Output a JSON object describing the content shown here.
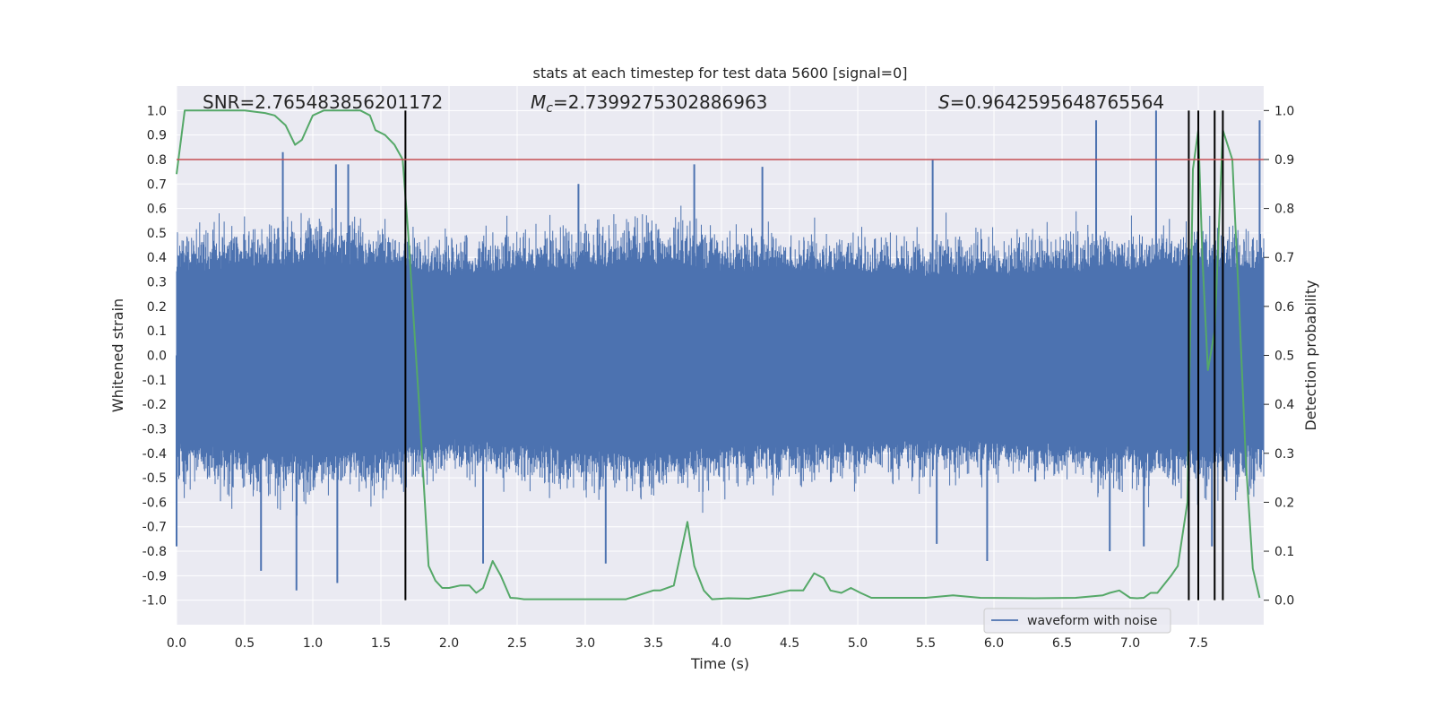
{
  "chart_data": {
    "type": "line",
    "title": "stats at each timestep for test data 5600 [signal=0]",
    "xlabel": "Time (s)",
    "ylabel_left": "Whitened strain",
    "ylabel_right": "Detection probability",
    "xlim": [
      0.0,
      7.98
    ],
    "ylim_left": [
      -1.1,
      1.1
    ],
    "ylim_right": [
      -0.05,
      1.05
    ],
    "x_ticks": [
      "0.0",
      "0.5",
      "1.0",
      "1.5",
      "2.0",
      "2.5",
      "3.0",
      "3.5",
      "4.0",
      "4.5",
      "5.0",
      "5.5",
      "6.0",
      "6.5",
      "7.0",
      "7.5"
    ],
    "y_ticks_left": [
      "1.0",
      "0.9",
      "0.8",
      "0.7",
      "0.6",
      "0.5",
      "0.4",
      "0.3",
      "0.2",
      "0.1",
      "0.0",
      "-0.1",
      "-0.2",
      "-0.3",
      "-0.4",
      "-0.5",
      "-0.6",
      "-0.7",
      "-0.8",
      "-0.9",
      "-1.0"
    ],
    "y_ticks_right": [
      "1.0",
      "0.9",
      "0.8",
      "0.7",
      "0.6",
      "0.5",
      "0.4",
      "0.3",
      "0.2",
      "0.1",
      "0.0"
    ],
    "grid": true,
    "legend_placement": "bottom-right",
    "annotations": {
      "snr": "SNR=2.765483856201172",
      "mc_symbol": "M",
      "mc_sub": "c",
      "mc_value": "=2.7399275302886963",
      "s_symbol": "S",
      "s_value": "=0.9642595648765564"
    },
    "threshold": {
      "value": 0.9,
      "axis": "right",
      "color": "#c44e52"
    },
    "vertical_lines": [
      1.68,
      7.43,
      7.5,
      7.62,
      7.68
    ],
    "series": [
      {
        "name": "waveform with noise",
        "axis": "left",
        "color": "#4c72b0",
        "envelope": {
          "t": [
            0.0,
            0.5,
            1.0,
            1.5,
            2.0,
            2.5,
            3.0,
            3.5,
            4.0,
            4.5,
            5.0,
            5.5,
            6.0,
            6.5,
            7.0,
            7.5,
            7.98
          ],
          "spread": [
            0.45,
            0.48,
            0.5,
            0.48,
            0.42,
            0.45,
            0.47,
            0.5,
            0.46,
            0.45,
            0.44,
            0.43,
            0.43,
            0.45,
            0.46,
            0.48,
            0.45
          ]
        },
        "spikes": [
          {
            "t": 0.78,
            "v": 0.83
          },
          {
            "t": 1.17,
            "v": 0.78
          },
          {
            "t": 1.26,
            "v": 0.78
          },
          {
            "t": 2.95,
            "v": 0.7
          },
          {
            "t": 3.8,
            "v": 0.78
          },
          {
            "t": 4.3,
            "v": 0.77
          },
          {
            "t": 5.55,
            "v": 0.8
          },
          {
            "t": 6.75,
            "v": 0.96
          },
          {
            "t": 7.19,
            "v": 1.0
          },
          {
            "t": 7.95,
            "v": 0.96
          },
          {
            "t": 0.88,
            "v": -0.96
          },
          {
            "t": 1.18,
            "v": -0.93
          },
          {
            "t": 0.62,
            "v": -0.88
          },
          {
            "t": 2.25,
            "v": -0.85
          },
          {
            "t": 3.15,
            "v": -0.85
          },
          {
            "t": 5.95,
            "v": -0.84
          },
          {
            "t": 5.58,
            "v": -0.77
          },
          {
            "t": 7.1,
            "v": -0.78
          },
          {
            "t": 6.85,
            "v": -0.8
          },
          {
            "t": 7.6,
            "v": -0.78
          },
          {
            "t": 0.0,
            "v": -0.78
          }
        ]
      },
      {
        "name": "Detection probability",
        "axis": "right",
        "color": "#55a868",
        "x": [
          0.0,
          0.06,
          0.15,
          0.3,
          0.5,
          0.65,
          0.72,
          0.8,
          0.87,
          0.92,
          1.0,
          1.08,
          1.15,
          1.25,
          1.35,
          1.42,
          1.46,
          1.53,
          1.6,
          1.66,
          1.7,
          1.78,
          1.85,
          1.9,
          1.95,
          2.0,
          2.08,
          2.15,
          2.2,
          2.25,
          2.32,
          2.38,
          2.45,
          2.5,
          2.55,
          2.7,
          3.0,
          3.3,
          3.5,
          3.55,
          3.65,
          3.75,
          3.8,
          3.87,
          3.93,
          4.05,
          4.2,
          4.35,
          4.5,
          4.6,
          4.68,
          4.75,
          4.8,
          4.88,
          4.95,
          5.02,
          5.1,
          5.5,
          5.7,
          5.9,
          6.3,
          6.6,
          6.8,
          6.85,
          6.92,
          7.0,
          7.05,
          7.1,
          7.15,
          7.2,
          7.3,
          7.35,
          7.42,
          7.46,
          7.5,
          7.53,
          7.57,
          7.62,
          7.68,
          7.75,
          7.8,
          7.85,
          7.9,
          7.95
        ],
        "y": [
          0.87,
          1.0,
          1.0,
          1.0,
          1.0,
          0.995,
          0.99,
          0.97,
          0.93,
          0.94,
          0.99,
          1.0,
          1.0,
          1.0,
          1.0,
          0.99,
          0.96,
          0.95,
          0.93,
          0.9,
          0.75,
          0.4,
          0.07,
          0.04,
          0.025,
          0.025,
          0.03,
          0.03,
          0.015,
          0.025,
          0.08,
          0.05,
          0.005,
          0.004,
          0.002,
          0.002,
          0.002,
          0.002,
          0.02,
          0.02,
          0.03,
          0.16,
          0.07,
          0.02,
          0.002,
          0.004,
          0.003,
          0.01,
          0.02,
          0.02,
          0.055,
          0.045,
          0.02,
          0.015,
          0.025,
          0.015,
          0.005,
          0.005,
          0.01,
          0.005,
          0.004,
          0.005,
          0.01,
          0.015,
          0.02,
          0.005,
          0.004,
          0.005,
          0.015,
          0.015,
          0.05,
          0.07,
          0.2,
          0.88,
          0.96,
          0.7,
          0.47,
          0.55,
          0.96,
          0.9,
          0.6,
          0.28,
          0.065,
          0.005
        ]
      }
    ]
  }
}
